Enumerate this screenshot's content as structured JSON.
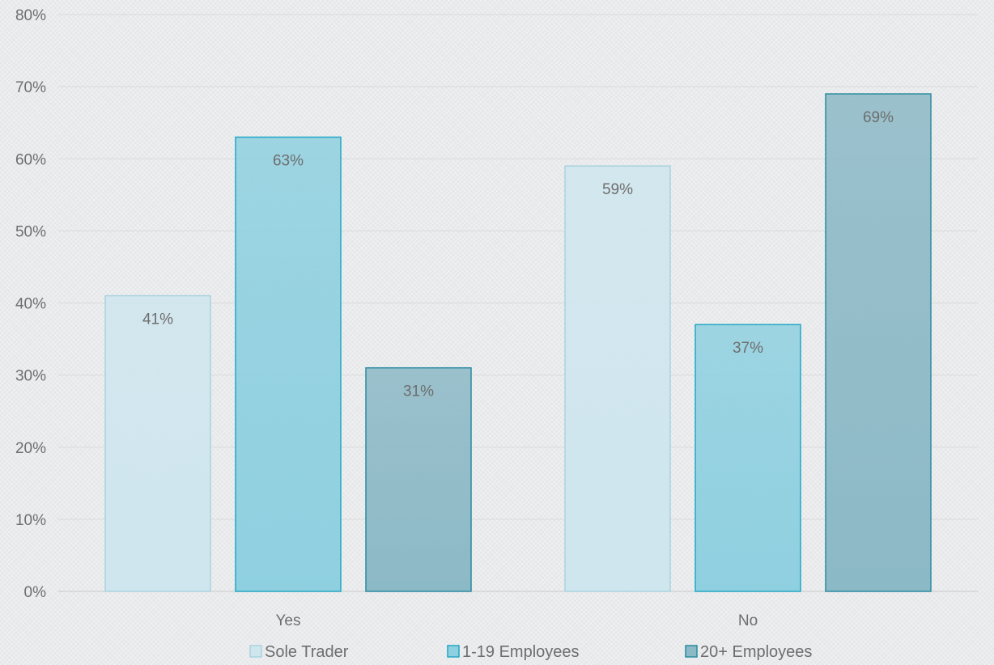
{
  "chart_data": {
    "type": "bar",
    "title": "",
    "xlabel": "",
    "ylabel": "",
    "categories": [
      "Yes",
      "No"
    ],
    "series": [
      {
        "name": "Sole Trader",
        "values": [
          41,
          59
        ],
        "labels": [
          "41%",
          "59%"
        ],
        "color": "#cfe6ee",
        "stroke": "#a9d3df"
      },
      {
        "name": "1-19 Employees",
        "values": [
          63,
          37
        ],
        "labels": [
          "63%",
          "37%"
        ],
        "color": "#8fd0e0",
        "stroke": "#22a7c4"
      },
      {
        "name": "20+ Employees",
        "values": [
          31,
          69
        ],
        "labels": [
          "31%",
          "69%"
        ],
        "color": "#8cb9c6",
        "stroke": "#2a8ca0"
      }
    ],
    "ylim": [
      0,
      80
    ],
    "yticks": [
      "0%",
      "10%",
      "20%",
      "30%",
      "40%",
      "50%",
      "60%",
      "70%",
      "80%"
    ],
    "ytick_values": [
      0,
      10,
      20,
      30,
      40,
      50,
      60,
      70,
      80
    ],
    "grid": true,
    "legend_position": "bottom"
  }
}
